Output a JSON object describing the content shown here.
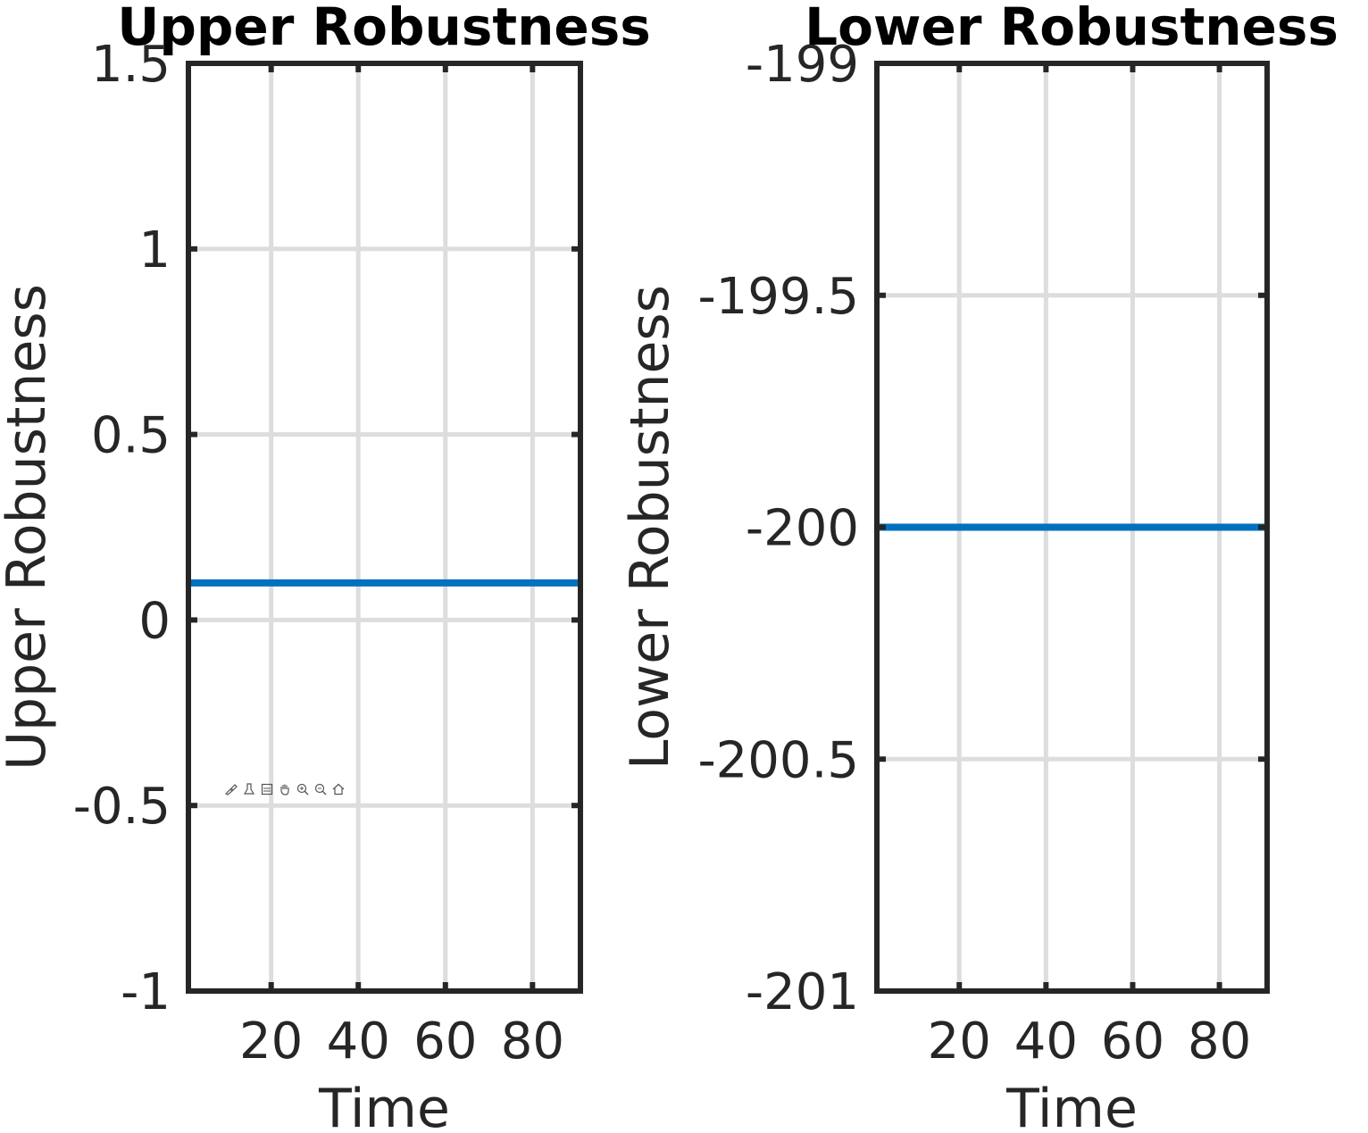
{
  "chart_data": [
    {
      "type": "line",
      "title": "Upper Robustness",
      "xlabel": "Time",
      "ylabel": "Upper Robustness",
      "xlim": [
        1,
        91
      ],
      "ylim": [
        -1,
        1.5
      ],
      "xticks": [
        20,
        40,
        60,
        80
      ],
      "xtick_labels": [
        "20",
        "40",
        "60",
        "80"
      ],
      "yticks": [
        -1,
        -0.5,
        0,
        0.5,
        1,
        1.5
      ],
      "ytick_labels": [
        "-1",
        "-0.5",
        "0",
        "0.5",
        "1",
        "1.5"
      ],
      "grid": true,
      "series": [
        {
          "name": "Upper Robustness",
          "color": "#0072BD",
          "x": [
            1,
            91
          ],
          "y": [
            0.1,
            0.1
          ]
        }
      ]
    },
    {
      "type": "line",
      "title": "Lower Robustness",
      "xlabel": "Time",
      "ylabel": "Lower Robustness",
      "xlim": [
        1,
        91
      ],
      "ylim": [
        -201,
        -199
      ],
      "xticks": [
        20,
        40,
        60,
        80
      ],
      "xtick_labels": [
        "20",
        "40",
        "60",
        "80"
      ],
      "yticks": [
        -201,
        -200.5,
        -200,
        -199.5,
        -199
      ],
      "ytick_labels": [
        "-201",
        "-200.5",
        "-200",
        "-199.5",
        "-199"
      ],
      "grid": true,
      "series": [
        {
          "name": "Lower Robustness",
          "color": "#0072BD",
          "x": [
            1,
            91
          ],
          "y": [
            -200,
            -200
          ]
        }
      ]
    }
  ],
  "toolbar": {
    "buttons": [
      "brush-icon",
      "datatip-icon",
      "legend-icon",
      "pan-icon",
      "zoom-in-icon",
      "zoom-out-icon",
      "home-icon"
    ]
  }
}
